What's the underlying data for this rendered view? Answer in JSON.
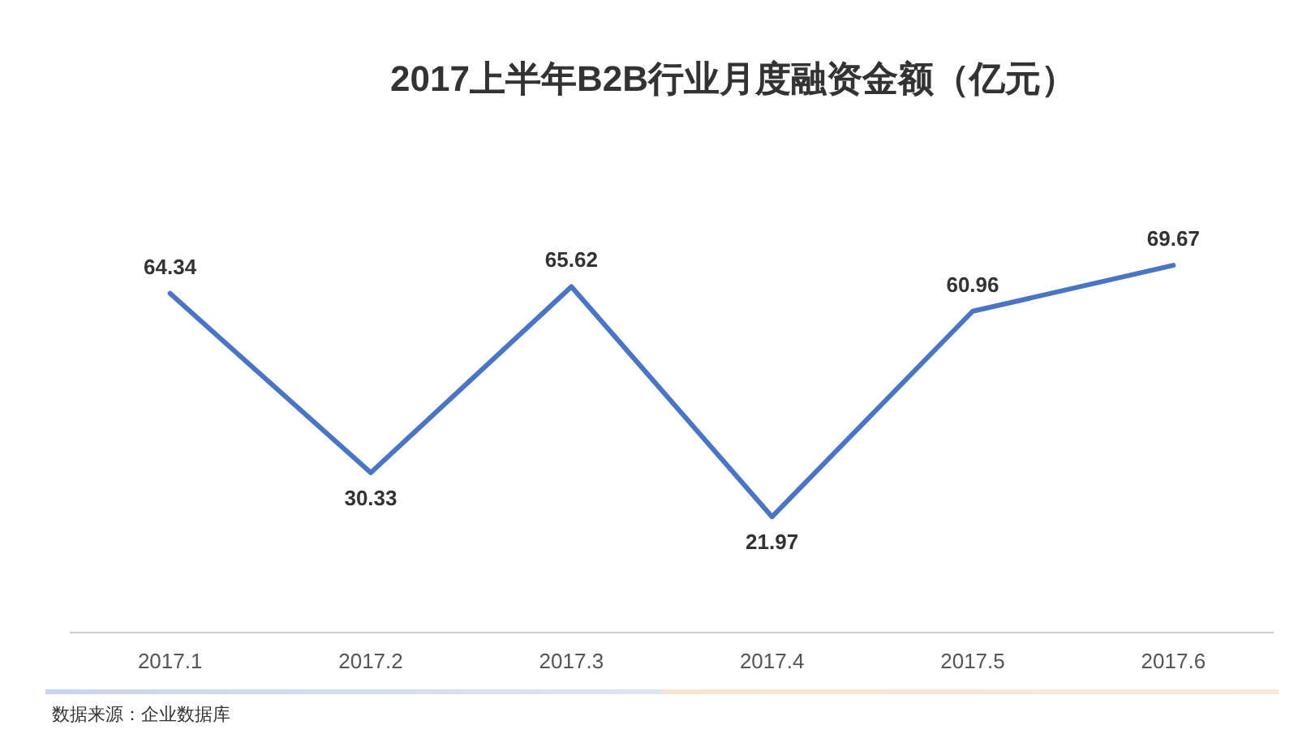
{
  "chart_data": {
    "type": "line",
    "title": "2017上半年B2B行业月度融资金额（亿元）",
    "categories": [
      "2017.1",
      "2017.2",
      "2017.3",
      "2017.4",
      "2017.5",
      "2017.6"
    ],
    "series": [
      {
        "color": "#4a74c4",
        "values": [
          64.34,
          30.33,
          65.62,
          21.97,
          60.96,
          69.67
        ]
      }
    ],
    "data_labels": true,
    "grid": false,
    "marker": "none",
    "line_style": "solid",
    "annotations": [
      "数据来源：企业数据库"
    ]
  }
}
